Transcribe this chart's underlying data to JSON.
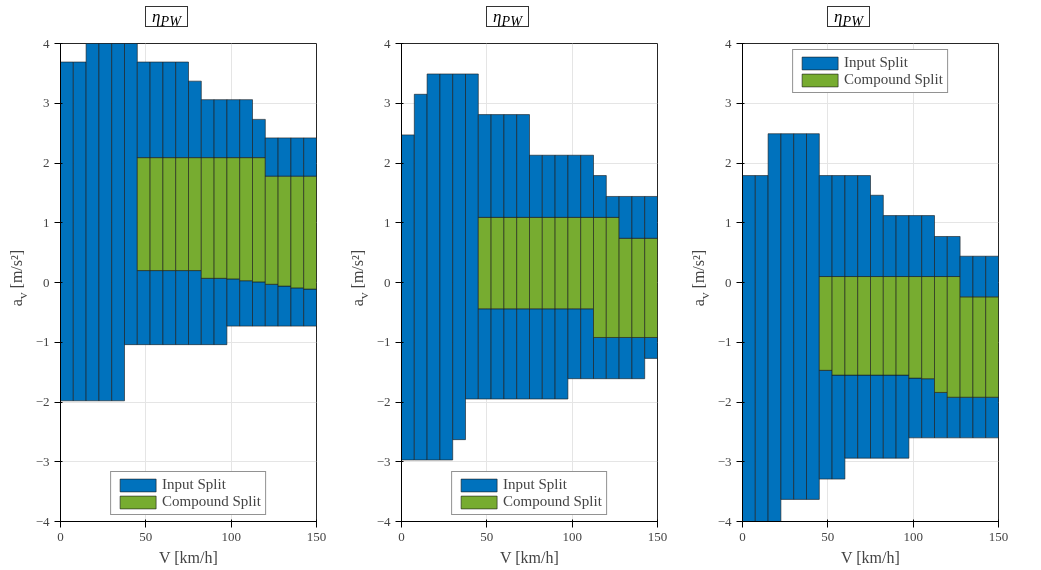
{
  "chart_data": [
    {
      "type": "bar",
      "title": "η$_{PW}$",
      "xlabel": "V [km/h]",
      "ylabel": "a$_{v}$ [m/s²]",
      "xlim": [
        0,
        150
      ],
      "ylim": [
        -4,
        4
      ],
      "xticks": [
        0,
        50,
        100,
        150
      ],
      "yticks": [
        -4,
        -3,
        -2,
        -1,
        0,
        1,
        2,
        3,
        4
      ],
      "grid": true,
      "legend": "bottom",
      "x": [
        3.75,
        11.25,
        18.75,
        26.25,
        33.75,
        41.25,
        48.75,
        56.25,
        63.75,
        71.25,
        78.75,
        86.25,
        93.75,
        101.25,
        108.75,
        116.25,
        123.75,
        131.25,
        138.75,
        146.25
      ],
      "series": [
        {
          "name": "Input Split",
          "color": "#0072bd",
          "base": [
            -1.98,
            -1.98,
            -1.98,
            -1.98,
            -1.98,
            -1.04,
            -1.04,
            -1.04,
            -1.04,
            -1.04,
            -1.04,
            -1.04,
            -1.04,
            -0.73,
            -0.73,
            -0.73,
            -0.73,
            -0.73,
            -0.73,
            -0.73
          ],
          "values": [
            5.67,
            5.67,
            5.98,
            5.98,
            5.98,
            5.04,
            1.24,
            1.24,
            1.24,
            1.24,
            1.24,
            1.11,
            1.11,
            0.79,
            0.76,
            0.74,
            0.7,
            0.67,
            0.64,
            0.62
          ]
        },
        {
          "name": "Compound Split",
          "color": "#77ac30",
          "base": [
            null,
            null,
            null,
            null,
            null,
            null,
            0.2,
            0.2,
            0.2,
            0.2,
            0.2,
            0.07,
            0.07,
            0.06,
            0.03,
            0.01,
            -0.03,
            -0.06,
            -0.09,
            -0.11
          ],
          "values": [
            null,
            null,
            null,
            null,
            null,
            null,
            1.89,
            1.89,
            1.89,
            1.89,
            1.89,
            2.02,
            2.02,
            2.03,
            2.06,
            2.08,
            1.81,
            1.84,
            1.87,
            1.89
          ]
        },
        {
          "color": "#0072bd",
          "base": [
            null,
            null,
            null,
            null,
            null,
            null,
            2.09,
            2.09,
            2.09,
            2.09,
            2.09,
            2.09,
            2.09,
            2.09,
            2.09,
            2.09,
            1.78,
            1.78,
            1.78,
            1.78
          ],
          "values": [
            null,
            null,
            null,
            null,
            null,
            null,
            1.6,
            1.6,
            1.6,
            1.6,
            1.28,
            0.97,
            0.97,
            0.97,
            0.97,
            0.64,
            0.64,
            0.64,
            0.64,
            0.64
          ]
        }
      ]
    },
    {
      "type": "bar",
      "title": "η$_{PW}$",
      "xlabel": "V [km/h]",
      "ylabel": "a$_{v}$ [m/s²]",
      "xlim": [
        0,
        150
      ],
      "ylim": [
        -4,
        4
      ],
      "xticks": [
        0,
        50,
        100,
        150
      ],
      "yticks": [
        -4,
        -3,
        -2,
        -1,
        0,
        1,
        2,
        3,
        4
      ],
      "grid": true,
      "legend": "bottom",
      "x": [
        3.75,
        11.25,
        18.75,
        26.25,
        33.75,
        41.25,
        48.75,
        56.25,
        63.75,
        71.25,
        78.75,
        86.25,
        93.75,
        101.25,
        108.75,
        116.25,
        123.75,
        131.25,
        138.75,
        146.25
      ],
      "series": [
        {
          "name": "Input Split",
          "color": "#0072bd",
          "base": [
            -2.97,
            -2.97,
            -2.97,
            -2.97,
            -2.63,
            -1.95,
            -1.95,
            -1.95,
            -1.95,
            -1.95,
            -1.95,
            -1.95,
            -1.95,
            -1.61,
            -1.61,
            -1.61,
            -1.61,
            -1.61,
            -1.61,
            -1.27
          ],
          "values": [
            5.44,
            6.12,
            6.46,
            6.46,
            6.12,
            5.44,
            1.51,
            1.51,
            1.51,
            1.51,
            1.51,
            1.51,
            1.51,
            1.17,
            1.17,
            0.69,
            0.69,
            0.69,
            0.69,
            0.35
          ]
        },
        {
          "name": "Compound Split",
          "color": "#77ac30",
          "base": [
            null,
            null,
            null,
            null,
            null,
            null,
            -0.44,
            -0.44,
            -0.44,
            -0.44,
            -0.44,
            -0.44,
            -0.44,
            -0.44,
            -0.44,
            -0.92,
            -0.92,
            -0.92,
            -0.92,
            -0.92
          ],
          "values": [
            null,
            null,
            null,
            null,
            null,
            null,
            1.53,
            1.53,
            1.53,
            1.53,
            1.53,
            1.53,
            1.53,
            1.53,
            1.53,
            2.01,
            2.01,
            1.66,
            1.66,
            1.66
          ]
        },
        {
          "color": "#0072bd",
          "base": [
            null,
            null,
            null,
            null,
            null,
            null,
            1.09,
            1.09,
            1.09,
            1.09,
            1.09,
            1.09,
            1.09,
            1.09,
            1.09,
            1.09,
            1.09,
            0.74,
            0.74,
            0.74
          ],
          "values": [
            null,
            null,
            null,
            null,
            null,
            null,
            1.72,
            1.72,
            1.72,
            1.72,
            1.04,
            1.04,
            1.04,
            1.04,
            1.04,
            0.7,
            0.35,
            0.7,
            0.7,
            0.7
          ]
        }
      ]
    },
    {
      "type": "bar",
      "title": "η$_{PW}$",
      "xlabel": "V [km/h]",
      "ylabel": "a$_{v}$ [m/s²]",
      "xlim": [
        0,
        150
      ],
      "ylim": [
        -4,
        4
      ],
      "xticks": [
        0,
        50,
        100,
        150
      ],
      "yticks": [
        -4,
        -3,
        -2,
        -1,
        0,
        1,
        2,
        3,
        4
      ],
      "grid": true,
      "legend": "top",
      "x": [
        3.75,
        11.25,
        18.75,
        26.25,
        33.75,
        41.25,
        48.75,
        56.25,
        63.75,
        71.25,
        78.75,
        86.25,
        93.75,
        101.25,
        108.75,
        116.25,
        123.75,
        131.25,
        138.75,
        146.25
      ],
      "series": [
        {
          "name": "Input Split",
          "color": "#0072bd",
          "base": [
            -4,
            -4,
            -4,
            -3.63,
            -3.63,
            -3.63,
            -3.29,
            -3.29,
            -2.94,
            -2.94,
            -2.94,
            -2.94,
            -2.94,
            -2.6,
            -2.6,
            -2.6,
            -2.6,
            -2.6,
            -2.6,
            -2.6
          ],
          "values": [
            5.79,
            5.79,
            6.49,
            6.12,
            6.12,
            6.12,
            1.82,
            1.74,
            1.39,
            1.39,
            1.39,
            1.39,
            1.39,
            1.0,
            0.99,
            0.76,
            0.68,
            0.68,
            0.68,
            0.68
          ]
        },
        {
          "name": "Compound Split",
          "color": "#77ac30",
          "base": [
            null,
            null,
            null,
            null,
            null,
            null,
            -1.47,
            -1.55,
            -1.55,
            -1.55,
            -1.55,
            -1.55,
            -1.55,
            -1.6,
            -1.61,
            -1.84,
            -1.92,
            -1.92,
            -1.92,
            -1.92
          ],
          "values": [
            null,
            null,
            null,
            null,
            null,
            null,
            1.57,
            1.65,
            1.65,
            1.65,
            1.65,
            1.65,
            1.65,
            1.7,
            1.71,
            1.94,
            2.02,
            1.68,
            1.68,
            1.68
          ]
        },
        {
          "color": "#0072bd",
          "base": [
            null,
            null,
            null,
            null,
            null,
            null,
            0.1,
            0.1,
            0.1,
            0.1,
            0.1,
            0.1,
            0.1,
            0.1,
            0.1,
            0.1,
            0.1,
            -0.24,
            -0.24,
            -0.24
          ],
          "values": [
            null,
            null,
            null,
            null,
            null,
            null,
            1.69,
            1.69,
            1.69,
            1.69,
            1.36,
            1.02,
            1.02,
            1.02,
            1.02,
            0.67,
            0.67,
            0.68,
            0.68,
            0.68
          ]
        }
      ]
    }
  ]
}
